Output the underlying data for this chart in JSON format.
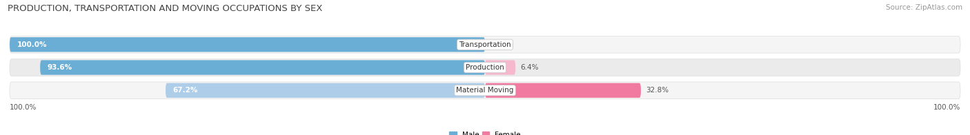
{
  "title": "PRODUCTION, TRANSPORTATION AND MOVING OCCUPATIONS BY SEX",
  "source": "Source: ZipAtlas.com",
  "categories": [
    "Transportation",
    "Production",
    "Material Moving"
  ],
  "male_values": [
    100.0,
    93.6,
    67.2
  ],
  "female_values": [
    0.0,
    6.4,
    32.8
  ],
  "male_color_strong": "#6aaed6",
  "male_color_light": "#aecde8",
  "female_color_strong": "#f07aa0",
  "female_color_light": "#f5b8cc",
  "bg_color": "#ffffff",
  "row_bg_colors": [
    "#f5f5f5",
    "#ebebeb",
    "#f5f5f5"
  ],
  "label_color": "#555555",
  "title_color": "#444444",
  "source_color": "#999999",
  "title_fontsize": 9.5,
  "source_fontsize": 7.5,
  "bar_label_fontsize": 7.5,
  "category_fontsize": 7.5,
  "axis_label_fontsize": 7.5
}
